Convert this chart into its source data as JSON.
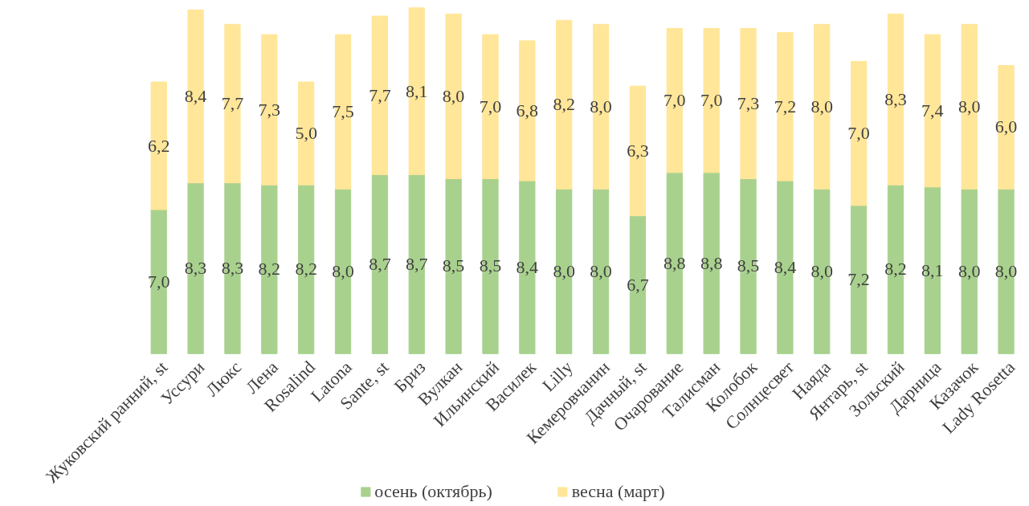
{
  "chart_data": {
    "type": "bar",
    "stacked": true,
    "legend": "bottom",
    "categories": [
      "Жуковский ранний, st",
      "Уссури",
      "Люкс",
      "Лена",
      "Rosalind",
      "Latona",
      "Sante, st",
      "Бриз",
      "Вулкан",
      "Ильинский",
      "Василек",
      "Lilly",
      "Кемеровчанин",
      "Дачный, st",
      "Очарование",
      "Талисман",
      "Колобок",
      "Солнцесвет",
      "Наяда",
      "Янтарь, st",
      "Зольский",
      "Дарница",
      "Казачок",
      "Lady Rosetta"
    ],
    "series": [
      {
        "name": "осень (октябрь)",
        "color": "#a9d18e",
        "values": [
          7.0,
          8.3,
          8.3,
          8.2,
          8.2,
          8.0,
          8.7,
          8.7,
          8.5,
          8.5,
          8.4,
          8.0,
          8.0,
          6.7,
          8.8,
          8.8,
          8.5,
          8.4,
          8.0,
          7.2,
          8.2,
          8.1,
          8.0,
          8.0
        ],
        "value_labels": [
          "7,0",
          "8,3",
          "8,3",
          "8,2",
          "8,2",
          "8,0",
          "8,7",
          "8,7",
          "8,5",
          "8,5",
          "8,4",
          "8,0",
          "8,0",
          "6,7",
          "8,8",
          "8,8",
          "8,5",
          "8,4",
          "8,0",
          "7,2",
          "8,2",
          "8,1",
          "8,0",
          "8,0"
        ]
      },
      {
        "name": "весна (март)",
        "color": "#ffe699",
        "values": [
          6.2,
          8.4,
          7.7,
          7.3,
          5.0,
          7.5,
          7.7,
          8.1,
          8.0,
          7.0,
          6.8,
          8.2,
          8.0,
          6.3,
          7.0,
          7.0,
          7.3,
          7.2,
          8.0,
          7.0,
          8.3,
          7.4,
          8.0,
          6.0
        ],
        "value_labels": [
          "6,2",
          "8,4",
          "7,7",
          "7,3",
          "5,0",
          "7,5",
          "7,7",
          "8,1",
          "8,0",
          "7,0",
          "6,8",
          "8,2",
          "8,0",
          "6,3",
          "7,0",
          "7,0",
          "7,3",
          "7,2",
          "8,0",
          "7,0",
          "8,3",
          "7,4",
          "8,0",
          "6,0"
        ]
      }
    ]
  }
}
